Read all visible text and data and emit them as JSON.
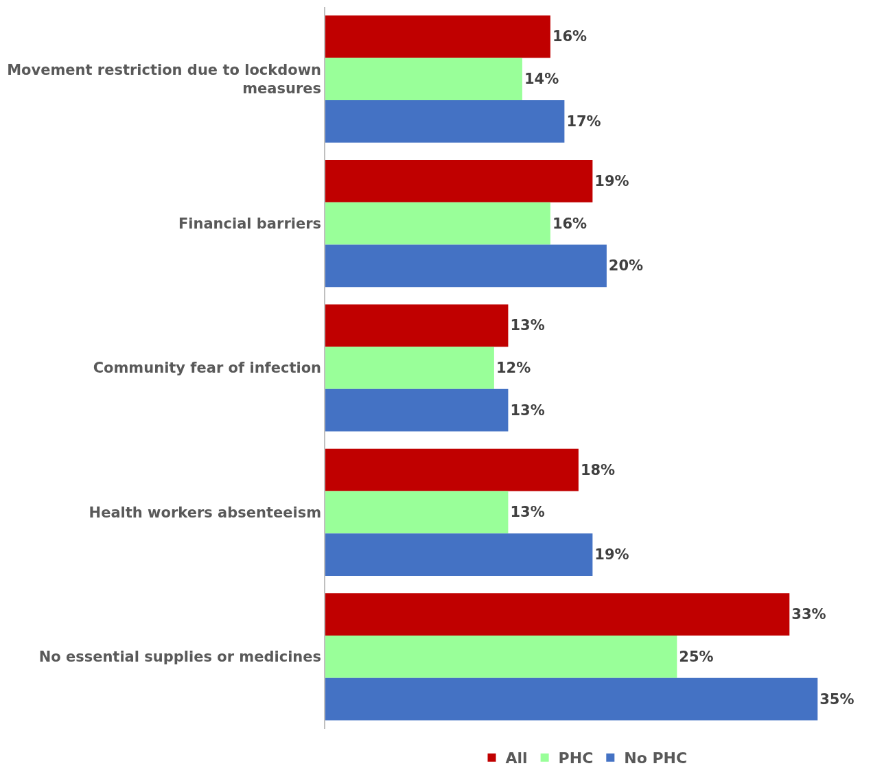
{
  "chart_data": {
    "type": "bar",
    "orientation": "horizontal",
    "categories": [
      "Movement restriction due to lockdown measures",
      "Financial barriers",
      "Community fear of infection",
      "Health workers absenteeism",
      "No essential supplies or medicines"
    ],
    "series": [
      {
        "name": "All",
        "color": "#c00000",
        "values": [
          16,
          19,
          13,
          18,
          33
        ],
        "value_labels": [
          "16%",
          "19%",
          "13%",
          "18%",
          "33%"
        ]
      },
      {
        "name": "PHC",
        "color": "#99ff99",
        "values": [
          14,
          16,
          12,
          13,
          25
        ],
        "value_labels": [
          "14%",
          "16%",
          "12%",
          "13%",
          "25%"
        ]
      },
      {
        "name": "No PHC",
        "color": "#4472c4",
        "values": [
          17,
          20,
          13,
          19,
          35
        ],
        "value_labels": [
          "17%",
          "20%",
          "13%",
          "19%",
          "35%"
        ]
      }
    ],
    "legend": "bottom",
    "tick_labels": "y"
  }
}
